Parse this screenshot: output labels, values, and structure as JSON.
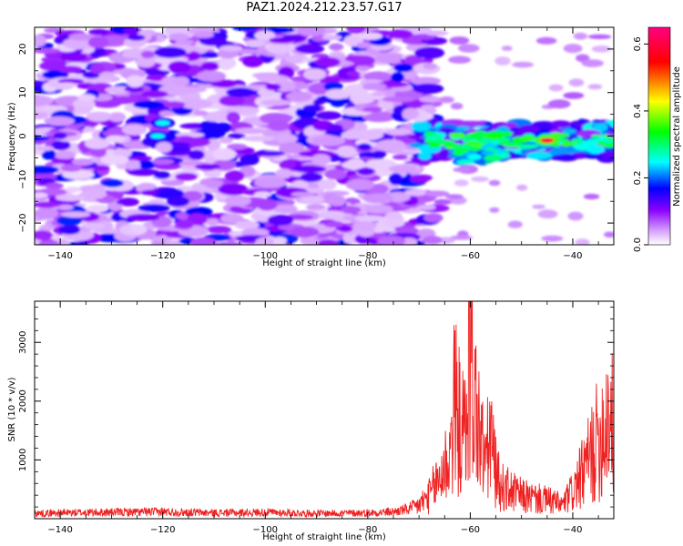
{
  "title": "PAZ1.2024.212.23.57.G17",
  "chart_data": [
    {
      "type": "heatmap",
      "xlabel": "Height of straight line (km)",
      "ylabel": "Frequency (Hz)",
      "xlim": [
        -145,
        -32
      ],
      "ylim": [
        -25,
        25
      ],
      "x_ticks": [
        -140,
        -120,
        -100,
        -80,
        -60,
        -40
      ],
      "y_ticks": [
        -20,
        -10,
        0,
        10,
        20
      ],
      "colorbar": {
        "label": "Normalized spectral amplitude",
        "range": [
          0,
          0.65
        ],
        "ticks": [
          0.0,
          0.2,
          0.4,
          0.6
        ],
        "colors": [
          "#ffffff",
          "#d9a8ff",
          "#8a00ff",
          "#0000ff",
          "#00ffff",
          "#00ff00",
          "#ffff00",
          "#ff0000",
          "#ff0080"
        ]
      },
      "features": [
        {
          "x_range": [
            -145,
            -67
          ],
          "y_range": [
            -25,
            25
          ],
          "level": "0.05-0.2",
          "desc": "diffuse noise"
        },
        {
          "x_range": [
            -70,
            -32
          ],
          "y_center": -1,
          "y_halfwidth": 4,
          "level": "0.2-0.6"
        },
        {
          "x": -45,
          "y": -1,
          "level": 0.6
        },
        {
          "x": -120,
          "y": 3,
          "level": 0.25
        },
        {
          "x": -121,
          "y": 0,
          "level": 0.25
        }
      ]
    },
    {
      "type": "line",
      "xlabel": "Height of straight line (km)",
      "ylabel": "SNR (10 * v/v)",
      "xlim": [
        -145,
        -32
      ],
      "ylim": [
        0,
        3700
      ],
      "x_ticks": [
        -140,
        -120,
        -100,
        -80,
        -60,
        -40
      ],
      "y_ticks": [
        1000,
        2000,
        3000
      ],
      "series": [
        {
          "color": "#ee2222",
          "x": [
            -145,
            -140,
            -130,
            -120,
            -110,
            -100,
            -90,
            -80,
            -75,
            -72,
            -70,
            -68,
            -66,
            -64,
            -63,
            -62,
            -61,
            -60,
            -59,
            -58,
            -57,
            -56,
            -55,
            -54,
            -52,
            -50,
            -48,
            -46,
            -44,
            -42,
            -40,
            -38,
            -36,
            -34,
            -33,
            -32
          ],
          "y": [
            100,
            110,
            120,
            130,
            110,
            120,
            100,
            110,
            130,
            180,
            300,
            500,
            900,
            1400,
            2600,
            2000,
            1800,
            3700,
            2500,
            1700,
            1300,
            1800,
            1000,
            700,
            600,
            500,
            450,
            420,
            380,
            300,
            600,
            1000,
            1500,
            2000,
            2400,
            1900
          ]
        }
      ]
    }
  ]
}
